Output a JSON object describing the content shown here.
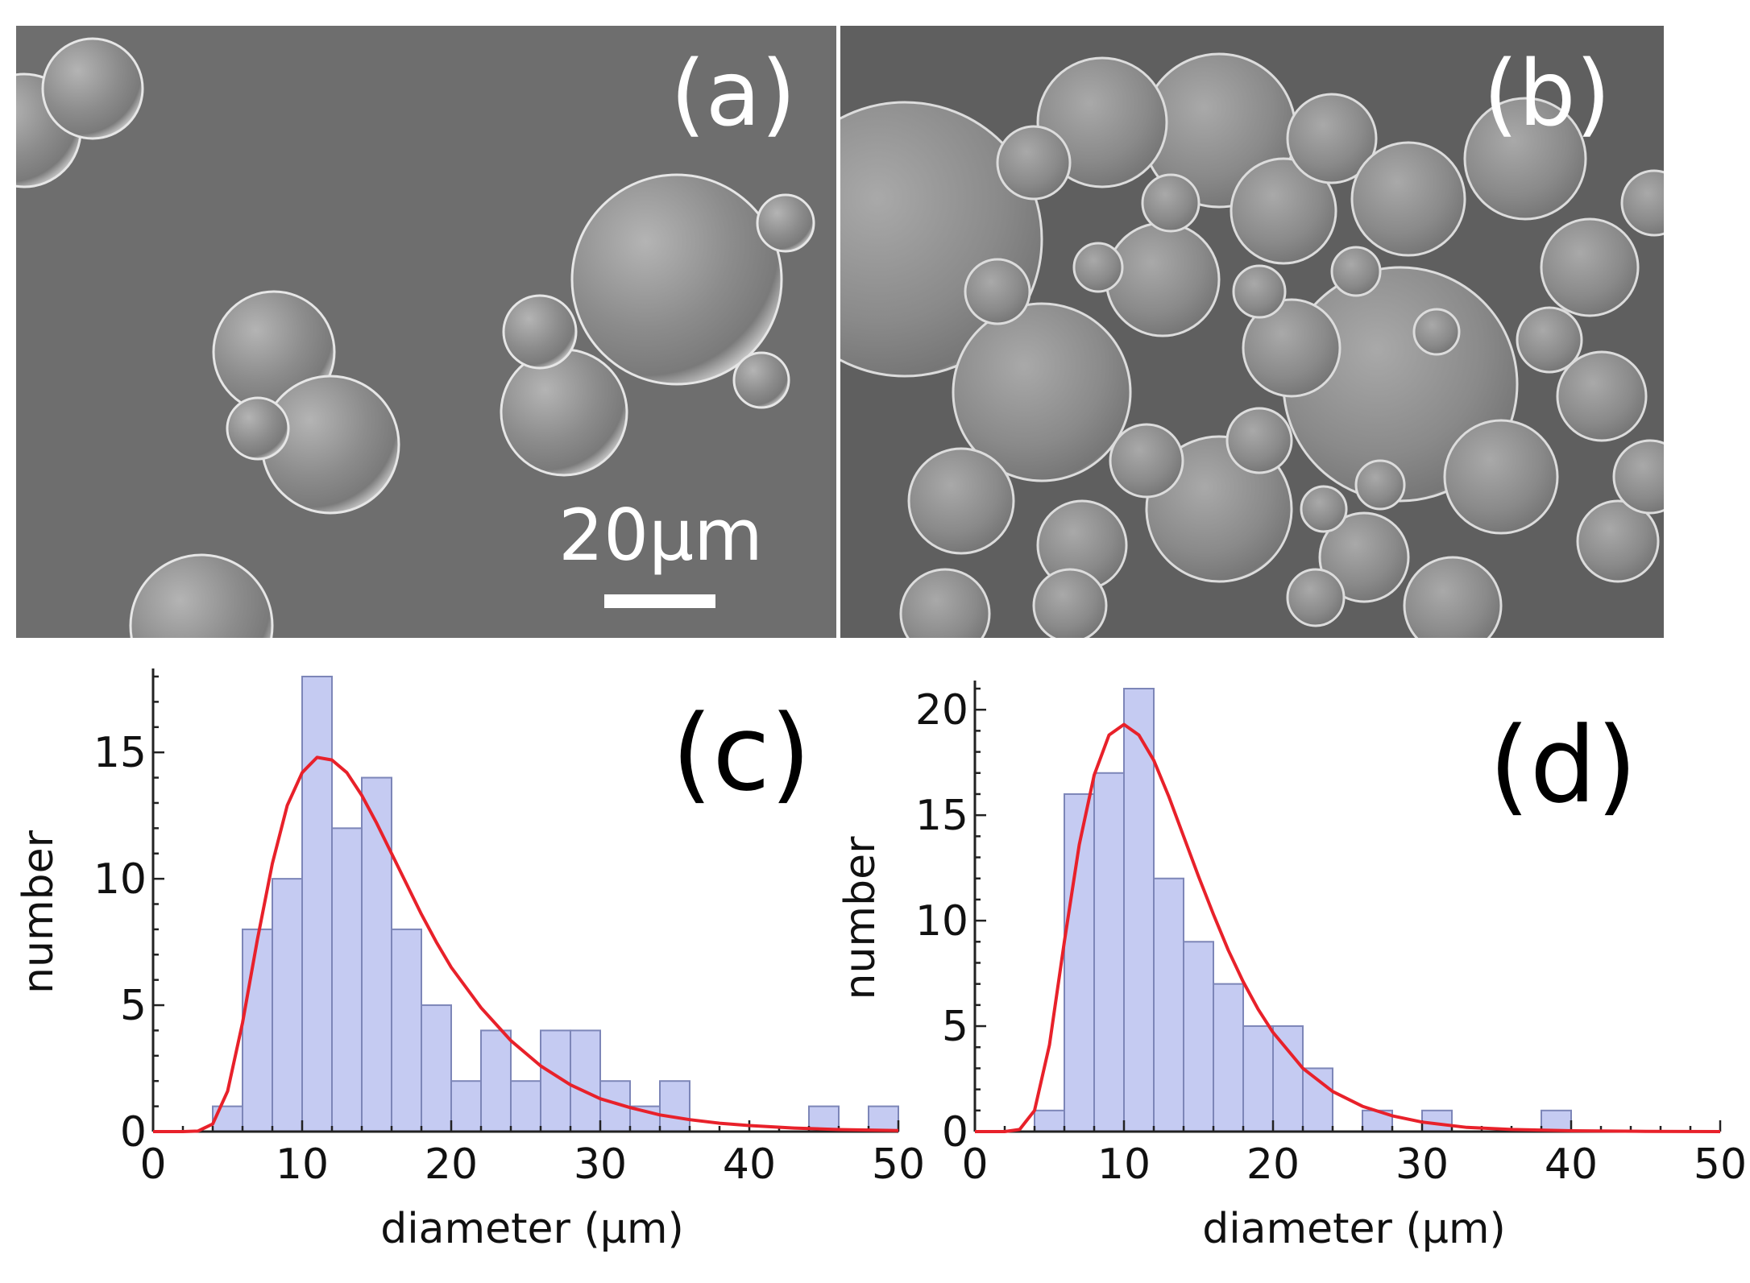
{
  "panels": {
    "a": {
      "label": "(a)",
      "scale_bar": "20μm"
    },
    "b": {
      "label": "(b)"
    }
  },
  "colors": {
    "bar_fill": "#c5cbf2",
    "bar_stroke": "#7d86b8",
    "fit_line": "#e8212a",
    "sem_background": "#6b6b6b",
    "sphere": "#8f8f8f"
  },
  "chart_data": [
    {
      "type": "bar",
      "panel_label": "(c)",
      "xlabel": "diameter (μm)",
      "ylabel": "number",
      "xlim": [
        0,
        50
      ],
      "ylim": [
        0,
        18
      ],
      "x_ticks": [
        0,
        10,
        20,
        30,
        40,
        50
      ],
      "y_ticks": [
        0,
        5,
        10,
        15
      ],
      "bin_width": 2,
      "bins": [
        {
          "x0": 4,
          "x1": 6,
          "value": 1
        },
        {
          "x0": 6,
          "x1": 8,
          "value": 8
        },
        {
          "x0": 8,
          "x1": 10,
          "value": 10
        },
        {
          "x0": 10,
          "x1": 12,
          "value": 18
        },
        {
          "x0": 12,
          "x1": 14,
          "value": 12
        },
        {
          "x0": 14,
          "x1": 16,
          "value": 14
        },
        {
          "x0": 16,
          "x1": 18,
          "value": 8
        },
        {
          "x0": 18,
          "x1": 20,
          "value": 5
        },
        {
          "x0": 20,
          "x1": 22,
          "value": 2
        },
        {
          "x0": 22,
          "x1": 24,
          "value": 4
        },
        {
          "x0": 24,
          "x1": 26,
          "value": 2
        },
        {
          "x0": 26,
          "x1": 28,
          "value": 4
        },
        {
          "x0": 28,
          "x1": 30,
          "value": 4
        },
        {
          "x0": 30,
          "x1": 32,
          "value": 2
        },
        {
          "x0": 32,
          "x1": 34,
          "value": 1
        },
        {
          "x0": 34,
          "x1": 36,
          "value": 2
        },
        {
          "x0": 44,
          "x1": 46,
          "value": 1
        },
        {
          "x0": 48,
          "x1": 50,
          "value": 1
        }
      ],
      "fit": {
        "type": "lognormal",
        "peak_x": 11.5,
        "peak_y": 14.8,
        "points": [
          [
            0,
            0
          ],
          [
            2,
            0
          ],
          [
            3,
            0.02
          ],
          [
            4,
            0.3
          ],
          [
            5,
            1.6
          ],
          [
            6,
            4.3
          ],
          [
            7,
            7.6
          ],
          [
            8,
            10.6
          ],
          [
            9,
            12.9
          ],
          [
            10,
            14.2
          ],
          [
            11,
            14.8
          ],
          [
            12,
            14.7
          ],
          [
            13,
            14.2
          ],
          [
            14,
            13.3
          ],
          [
            15,
            12.2
          ],
          [
            16,
            11.0
          ],
          [
            17,
            9.8
          ],
          [
            18,
            8.6
          ],
          [
            19,
            7.5
          ],
          [
            20,
            6.5
          ],
          [
            22,
            4.9
          ],
          [
            24,
            3.6
          ],
          [
            26,
            2.6
          ],
          [
            28,
            1.85
          ],
          [
            30,
            1.3
          ],
          [
            32,
            0.95
          ],
          [
            34,
            0.66
          ],
          [
            36,
            0.47
          ],
          [
            38,
            0.33
          ],
          [
            40,
            0.24
          ],
          [
            43,
            0.14
          ],
          [
            46,
            0.08
          ],
          [
            50,
            0.04
          ]
        ]
      }
    },
    {
      "type": "bar",
      "panel_label": "(d)",
      "xlabel": "diameter (μm)",
      "ylabel": "number",
      "xlim": [
        0,
        50
      ],
      "ylim": [
        0,
        21
      ],
      "x_ticks": [
        0,
        10,
        20,
        30,
        40,
        50
      ],
      "y_ticks": [
        0,
        5,
        10,
        15,
        20
      ],
      "bin_width": 2,
      "bins": [
        {
          "x0": 4,
          "x1": 6,
          "value": 1
        },
        {
          "x0": 6,
          "x1": 8,
          "value": 16
        },
        {
          "x0": 8,
          "x1": 10,
          "value": 17
        },
        {
          "x0": 10,
          "x1": 12,
          "value": 21
        },
        {
          "x0": 12,
          "x1": 14,
          "value": 12
        },
        {
          "x0": 14,
          "x1": 16,
          "value": 9
        },
        {
          "x0": 16,
          "x1": 18,
          "value": 7
        },
        {
          "x0": 18,
          "x1": 20,
          "value": 5
        },
        {
          "x0": 20,
          "x1": 22,
          "value": 5
        },
        {
          "x0": 22,
          "x1": 24,
          "value": 3
        },
        {
          "x0": 26,
          "x1": 28,
          "value": 1
        },
        {
          "x0": 30,
          "x1": 32,
          "value": 1
        },
        {
          "x0": 38,
          "x1": 40,
          "value": 1
        }
      ],
      "fit": {
        "type": "lognormal",
        "peak_x": 9.8,
        "peak_y": 19.3,
        "points": [
          [
            0,
            0
          ],
          [
            2,
            0
          ],
          [
            3,
            0.1
          ],
          [
            4,
            1.0
          ],
          [
            5,
            4.1
          ],
          [
            6,
            9.0
          ],
          [
            7,
            13.6
          ],
          [
            8,
            16.9
          ],
          [
            9,
            18.8
          ],
          [
            10,
            19.3
          ],
          [
            11,
            18.8
          ],
          [
            12,
            17.6
          ],
          [
            13,
            15.9
          ],
          [
            14,
            14.0
          ],
          [
            15,
            12.1
          ],
          [
            16,
            10.3
          ],
          [
            17,
            8.6
          ],
          [
            18,
            7.1
          ],
          [
            19,
            5.8
          ],
          [
            20,
            4.7
          ],
          [
            22,
            3.0
          ],
          [
            24,
            1.9
          ],
          [
            26,
            1.2
          ],
          [
            28,
            0.75
          ],
          [
            30,
            0.45
          ],
          [
            33,
            0.2
          ],
          [
            36,
            0.1
          ],
          [
            40,
            0.04
          ],
          [
            45,
            0.01
          ],
          [
            50,
            0
          ]
        ]
      }
    }
  ]
}
